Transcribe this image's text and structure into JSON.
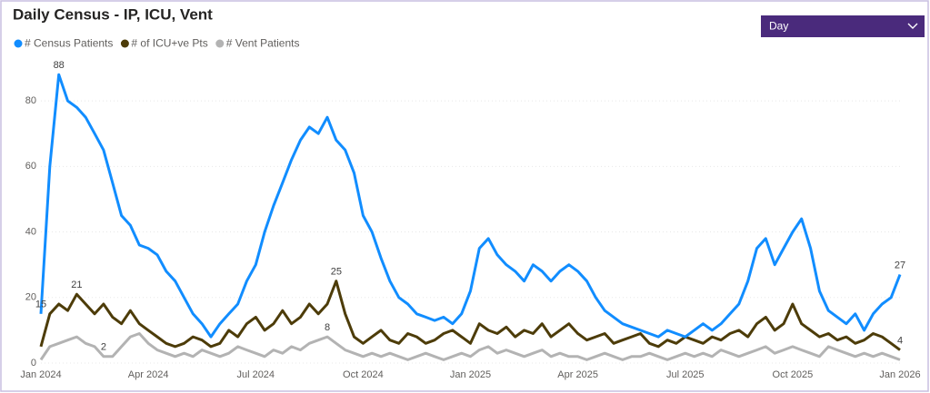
{
  "chart_data": {
    "type": "line",
    "title": "Daily Census - IP, ICU, Vent",
    "slicer": {
      "label": "Day"
    },
    "categories": [
      "Jan 2024",
      null,
      null,
      null,
      null,
      null,
      null,
      null,
      null,
      null,
      null,
      null,
      "Apr 2024",
      null,
      null,
      null,
      null,
      null,
      null,
      null,
      null,
      null,
      null,
      null,
      "Jul 2024",
      null,
      null,
      null,
      null,
      null,
      null,
      null,
      null,
      null,
      null,
      null,
      "Oct 2024",
      null,
      null,
      null,
      null,
      null,
      null,
      null,
      null,
      null,
      null,
      null,
      "Jan 2025",
      null,
      null,
      null,
      null,
      null,
      null,
      null,
      null,
      null,
      null,
      null,
      "Apr 2025",
      null,
      null,
      null,
      null,
      null,
      null,
      null,
      null,
      null,
      null,
      null,
      "Jul 2025",
      null,
      null,
      null,
      null,
      null,
      null,
      null,
      null,
      null,
      null,
      null,
      "Oct 2025",
      null,
      null,
      null,
      null,
      null,
      null,
      null,
      null,
      null,
      null,
      null,
      "Jan 2026"
    ],
    "series": [
      {
        "name": "# Census Patients",
        "color": "#118dff",
        "labeled": [
          0,
          2,
          96
        ],
        "values": [
          15,
          60,
          88,
          80,
          78,
          75,
          70,
          65,
          55,
          45,
          42,
          36,
          35,
          33,
          28,
          25,
          20,
          15,
          12,
          8,
          12,
          15,
          18,
          25,
          30,
          40,
          48,
          55,
          62,
          68,
          72,
          70,
          75,
          68,
          65,
          58,
          45,
          40,
          32,
          25,
          20,
          18,
          15,
          14,
          13,
          14,
          12,
          15,
          22,
          35,
          38,
          33,
          30,
          28,
          25,
          30,
          28,
          25,
          28,
          30,
          28,
          25,
          20,
          16,
          14,
          12,
          11,
          10,
          9,
          8,
          10,
          9,
          8,
          10,
          12,
          10,
          12,
          15,
          18,
          25,
          35,
          38,
          30,
          35,
          40,
          44,
          35,
          22,
          16,
          14,
          12,
          15,
          10,
          15,
          18,
          20,
          27
        ]
      },
      {
        "name": "# of ICU+ve Pts",
        "color": "#4d3c09",
        "labeled": [
          4,
          33,
          96
        ],
        "values": [
          5,
          15,
          18,
          16,
          21,
          18,
          15,
          18,
          14,
          12,
          16,
          12,
          10,
          8,
          6,
          5,
          6,
          8,
          7,
          5,
          6,
          10,
          8,
          12,
          14,
          10,
          12,
          16,
          12,
          14,
          18,
          15,
          18,
          25,
          15,
          8,
          6,
          8,
          10,
          7,
          6,
          9,
          8,
          6,
          7,
          9,
          10,
          8,
          6,
          12,
          10,
          9,
          11,
          8,
          10,
          9,
          12,
          8,
          10,
          12,
          9,
          7,
          8,
          9,
          6,
          7,
          8,
          9,
          6,
          5,
          7,
          6,
          8,
          7,
          6,
          8,
          7,
          9,
          10,
          8,
          12,
          14,
          10,
          12,
          18,
          12,
          10,
          8,
          9,
          7,
          8,
          6,
          7,
          9,
          8,
          6,
          4
        ]
      },
      {
        "name": "# Vent Patients",
        "color": "#b3b3b3",
        "labeled": [
          7,
          32
        ],
        "values": [
          1,
          5,
          6,
          7,
          8,
          6,
          5,
          2,
          2,
          5,
          8,
          9,
          6,
          4,
          3,
          2,
          3,
          2,
          4,
          3,
          2,
          3,
          5,
          4,
          3,
          2,
          4,
          3,
          5,
          4,
          6,
          7,
          8,
          6,
          4,
          3,
          2,
          3,
          2,
          3,
          2,
          1,
          2,
          3,
          2,
          1,
          2,
          3,
          2,
          4,
          5,
          3,
          4,
          3,
          2,
          3,
          4,
          2,
          3,
          2,
          2,
          1,
          2,
          3,
          2,
          1,
          2,
          2,
          3,
          2,
          1,
          2,
          3,
          2,
          3,
          2,
          4,
          3,
          2,
          3,
          4,
          5,
          3,
          4,
          5,
          4,
          3,
          2,
          5,
          4,
          3,
          2,
          3,
          2,
          3,
          2,
          1
        ]
      }
    ],
    "ylim": [
      0,
      90
    ],
    "yticks": [
      0,
      20,
      40,
      60,
      80
    ],
    "grid": true,
    "legend": "top-left"
  }
}
